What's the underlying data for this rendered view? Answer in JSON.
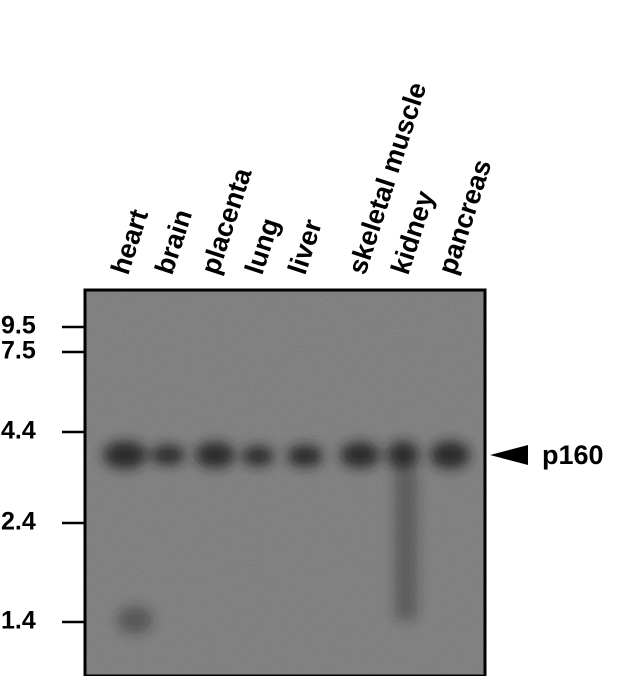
{
  "lanes": [
    "heart",
    "brain",
    "placenta",
    "lung",
    "liver",
    "skeletal muscle",
    "kidney",
    "pancreas"
  ],
  "markers": [
    "9.5",
    "7.5",
    "4.4",
    "2.4",
    "1.4"
  ],
  "band_label": "p160"
}
